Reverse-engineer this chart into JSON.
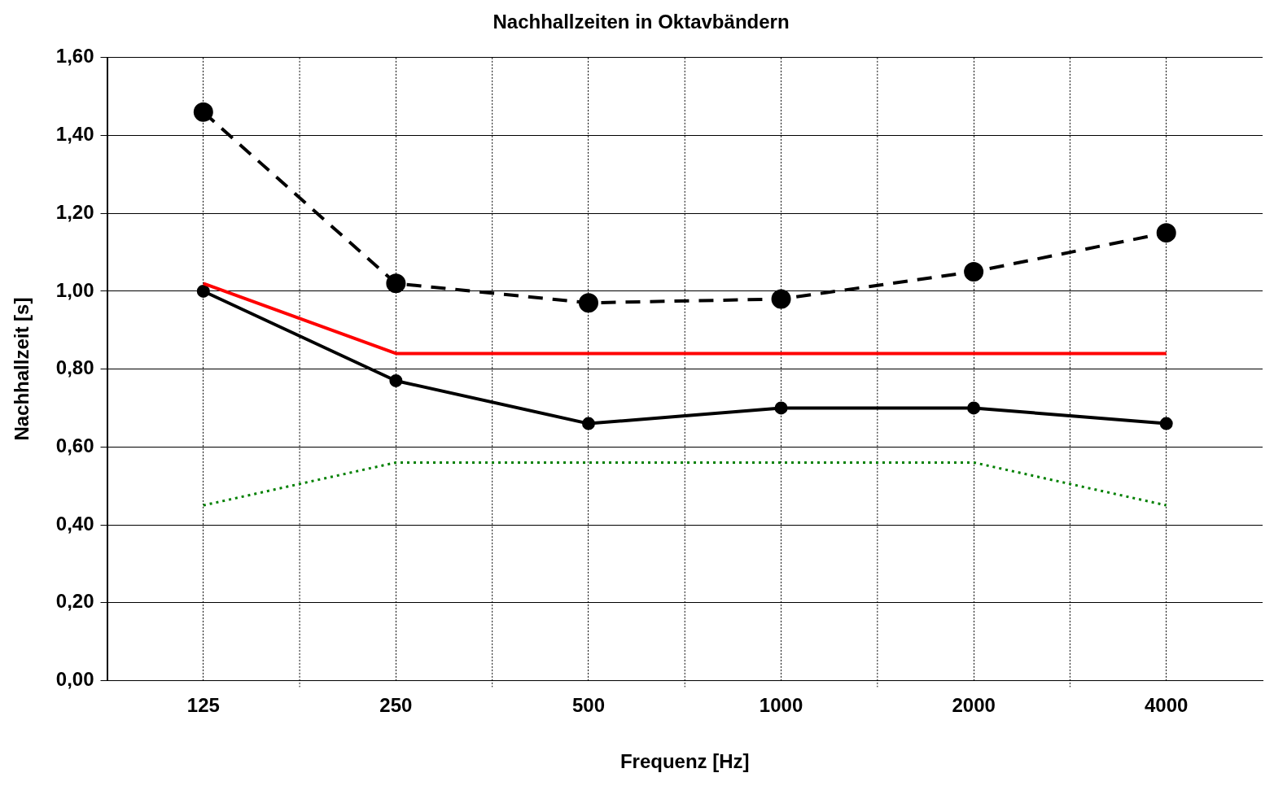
{
  "chart_data": {
    "type": "line",
    "title": "Nachhallzeiten in Oktavbändern",
    "xlabel": "Frequenz [Hz]",
    "ylabel": "Nachhallzeit [s]",
    "categories": [
      "125",
      "250",
      "500",
      "1000",
      "2000",
      "4000"
    ],
    "series": [
      {
        "color": "#000000",
        "values": [
          1.46,
          1.02,
          0.97,
          0.98,
          1.05,
          1.15
        ],
        "marker": "circle",
        "line_style": "dashed"
      },
      {
        "color": "#ff0000",
        "values": [
          1.02,
          0.84,
          0.84,
          0.84,
          0.84,
          0.84
        ],
        "marker": "none",
        "line_style": "solid"
      },
      {
        "color": "#000000",
        "values": [
          1.0,
          0.77,
          0.66,
          0.7,
          0.7,
          0.66
        ],
        "marker": "circle",
        "line_style": "solid"
      },
      {
        "color": "#008000",
        "values": [
          0.45,
          0.56,
          0.56,
          0.56,
          0.56,
          0.45
        ],
        "marker": "none",
        "line_style": "dotted"
      }
    ],
    "ylim": [
      0,
      1.6
    ],
    "yticks": [
      {
        "value": 0,
        "label": "0,00"
      },
      {
        "value": 0.2,
        "label": "0,20"
      },
      {
        "value": 0.4,
        "label": "0,40"
      },
      {
        "value": 0.6,
        "label": "0,60"
      },
      {
        "value": 0.8,
        "label": "0,80"
      },
      {
        "value": 1.0,
        "label": "1,00"
      },
      {
        "value": 1.2,
        "label": "1,20"
      },
      {
        "value": 1.4,
        "label": "1,40"
      },
      {
        "value": 1.6,
        "label": "1,60"
      }
    ],
    "grid": true,
    "legend": false
  }
}
